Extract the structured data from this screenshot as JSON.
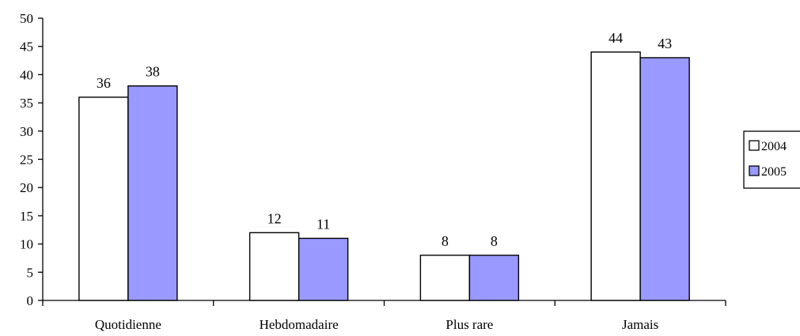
{
  "chart_data": {
    "type": "bar",
    "title": "",
    "xlabel": "",
    "ylabel": "",
    "categories": [
      "Quotidienne",
      "Hebdomadaire",
      "Plus rare",
      "Jamais"
    ],
    "series": [
      {
        "name": "2004",
        "values": [
          36,
          12,
          8,
          44
        ],
        "color": "#ffffff"
      },
      {
        "name": "2005",
        "values": [
          38,
          11,
          8,
          43
        ],
        "color": "#9999ff"
      }
    ],
    "ylim": [
      0,
      50
    ],
    "yticks": [
      "0",
      "5",
      "10",
      "15",
      "20",
      "25",
      "30",
      "35",
      "40",
      "45",
      "50"
    ],
    "data_labels": [
      [
        "36",
        "12",
        "8",
        "44"
      ],
      [
        "38",
        "11",
        "8",
        "43"
      ]
    ],
    "grid": false,
    "legend": "right"
  }
}
